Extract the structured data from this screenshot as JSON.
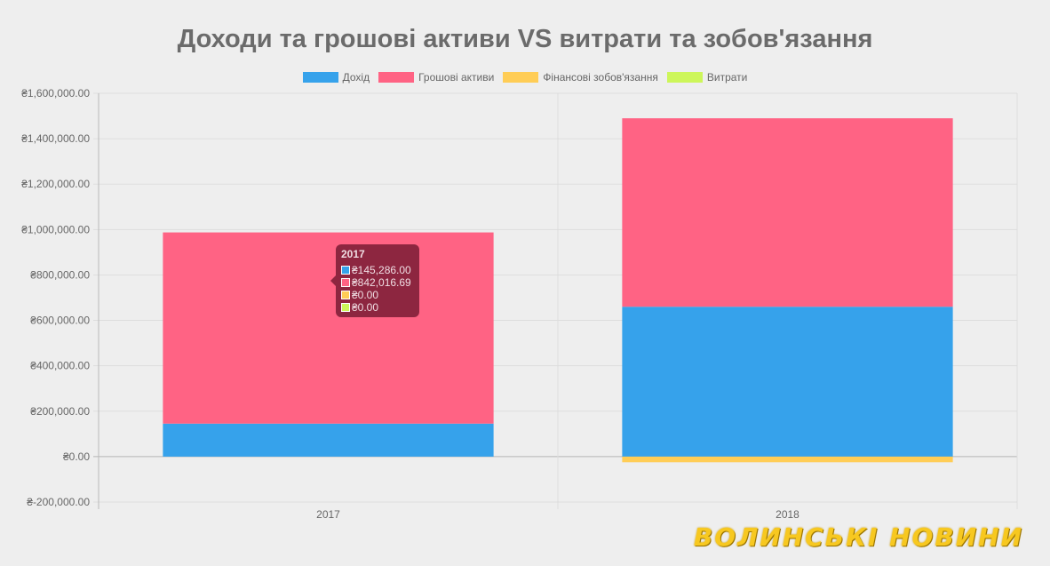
{
  "chart_data": {
    "type": "bar",
    "stacked": true,
    "title": "Доходи та грошові активи VS витрати та зобов'язання",
    "categories": [
      "2017",
      "2018"
    ],
    "series": [
      {
        "name": "Дохід",
        "color": "#36a2eb",
        "values": [
          145286.0,
          660000
        ]
      },
      {
        "name": "Грошові активи",
        "color": "#ff6384",
        "values": [
          842016.69,
          830000
        ]
      },
      {
        "name": "Фінансові зобов'язання",
        "color": "#ffcd56",
        "values": [
          0,
          -25000
        ]
      },
      {
        "name": "Витрати",
        "color": "#cdf65a",
        "values": [
          0,
          0
        ]
      }
    ],
    "ylim": [
      -200000,
      1600000
    ],
    "yticks": [
      1600000,
      1400000,
      1200000,
      1000000,
      800000,
      600000,
      400000,
      200000,
      0,
      -200000
    ],
    "ytick_labels": [
      "₴1,600,000.00",
      "₴1,400,000.00",
      "₴1,200,000.00",
      "₴1,000,000.00",
      "₴800,000.00",
      "₴600,000.00",
      "₴400,000.00",
      "₴200,000.00",
      "₴0.00",
      "₴-200,000.00"
    ],
    "grid": true,
    "legend_position": "top"
  },
  "tooltip": {
    "title": "2017",
    "rows": [
      {
        "value": "₴145,286.00",
        "color": "#36a2eb"
      },
      {
        "value": "₴842,016.69",
        "color": "#ff6384"
      },
      {
        "value": "₴0.00",
        "color": "#ffcd56"
      },
      {
        "value": "₴0.00",
        "color": "#cdf65a"
      }
    ]
  },
  "watermark": "ВОЛИНСЬКІ НОВИНИ"
}
